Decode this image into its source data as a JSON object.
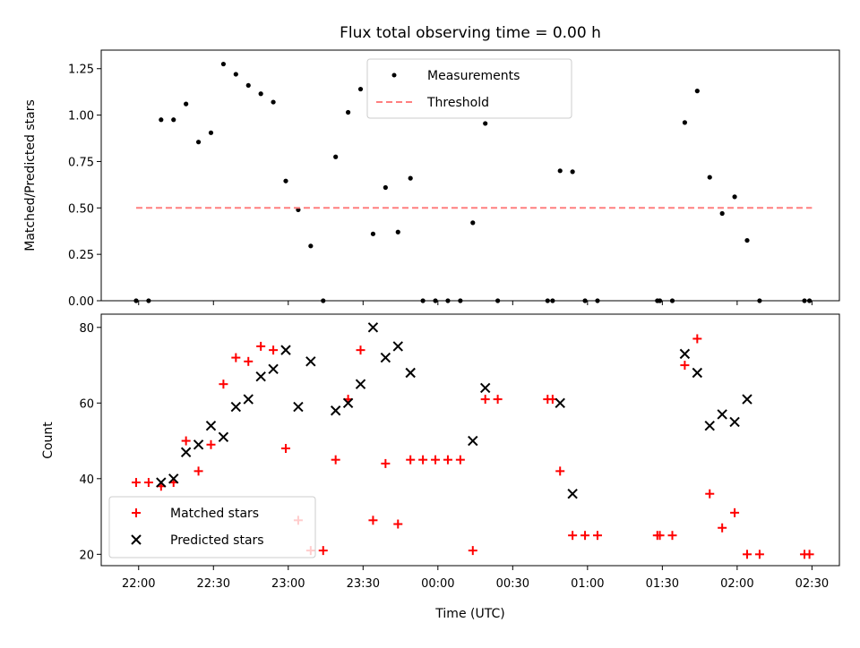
{
  "chart_data": [
    {
      "type": "scatter",
      "title": "Flux total observing time = 0.00 h",
      "xlabel": "",
      "ylabel": "Matched/Predicted stars",
      "ylim": [
        0,
        1.35
      ],
      "yticks": [
        0.0,
        0.25,
        0.5,
        0.75,
        1.0,
        1.25
      ],
      "yticklabels": [
        "0.00",
        "0.25",
        "0.50",
        "0.75",
        "1.00",
        "1.25"
      ],
      "legend": "upper-center",
      "series": [
        {
          "name": "Measurements",
          "marker": "dot",
          "color": "#000000",
          "points": [
            [
              "21:59",
              0
            ],
            [
              "22:04",
              0
            ],
            [
              "22:09",
              0.975
            ],
            [
              "22:14",
              0.975
            ],
            [
              "22:19",
              1.06
            ],
            [
              "22:24",
              0.855
            ],
            [
              "22:29",
              0.905
            ],
            [
              "22:34",
              1.275
            ],
            [
              "22:39",
              1.22
            ],
            [
              "22:44",
              1.16
            ],
            [
              "22:49",
              1.115
            ],
            [
              "22:54",
              1.07
            ],
            [
              "22:59",
              0.645
            ],
            [
              "23:04",
              0.49
            ],
            [
              "23:09",
              0.295
            ],
            [
              "23:14",
              0
            ],
            [
              "23:19",
              0.775
            ],
            [
              "23:24",
              1.015
            ],
            [
              "23:29",
              1.14
            ],
            [
              "23:34",
              0.36
            ],
            [
              "23:39",
              0.61
            ],
            [
              "23:44",
              0.37
            ],
            [
              "23:49",
              0.66
            ],
            [
              "23:54",
              0
            ],
            [
              "23:59",
              0
            ],
            [
              "00:04",
              0
            ],
            [
              "00:09",
              0
            ],
            [
              "00:14",
              0.42
            ],
            [
              "00:19",
              0.955
            ],
            [
              "00:24",
              0
            ],
            [
              "00:44",
              0
            ],
            [
              "00:46",
              0
            ],
            [
              "00:49",
              0.7
            ],
            [
              "00:54",
              0.695
            ],
            [
              "00:59",
              0
            ],
            [
              "01:04",
              0
            ],
            [
              "01:28",
              0
            ],
            [
              "01:29",
              0
            ],
            [
              "01:34",
              0
            ],
            [
              "01:39",
              0.96
            ],
            [
              "01:44",
              1.13
            ],
            [
              "01:49",
              0.665
            ],
            [
              "01:54",
              0.47
            ],
            [
              "01:59",
              0.56
            ],
            [
              "02:04",
              0.325
            ],
            [
              "02:09",
              0
            ],
            [
              "02:27",
              0
            ],
            [
              "02:29",
              0
            ]
          ]
        },
        {
          "name": "Threshold",
          "style": "dashed",
          "color": "#ff7f7f",
          "points": [
            [
              "21:59",
              0.5
            ],
            [
              "02:30",
              0.5
            ]
          ]
        }
      ]
    },
    {
      "type": "scatter",
      "title": "",
      "xlabel": "Time (UTC)",
      "ylabel": "Count",
      "ylim": [
        17,
        83.5
      ],
      "yticks": [
        20,
        40,
        60,
        80
      ],
      "yticklabels": [
        "20",
        "40",
        "60",
        "80"
      ],
      "xrange": [
        "21:45",
        "02:41"
      ],
      "xticks": [
        "22:00",
        "22:30",
        "23:00",
        "23:30",
        "00:00",
        "00:30",
        "01:00",
        "01:30",
        "02:00",
        "02:30"
      ],
      "legend": "lower-left",
      "series": [
        {
          "name": "Matched stars",
          "marker": "plus",
          "color": "#ff0000",
          "points": [
            [
              "21:59",
              39
            ],
            [
              "22:04",
              39
            ],
            [
              "22:09",
              38
            ],
            [
              "22:14",
              39
            ],
            [
              "22:19",
              50
            ],
            [
              "22:24",
              42
            ],
            [
              "22:29",
              49
            ],
            [
              "22:34",
              65
            ],
            [
              "22:39",
              72
            ],
            [
              "22:44",
              71
            ],
            [
              "22:49",
              75
            ],
            [
              "22:54",
              74
            ],
            [
              "22:59",
              48
            ],
            [
              "23:04",
              29
            ],
            [
              "23:09",
              21
            ],
            [
              "23:14",
              21
            ],
            [
              "23:19",
              45
            ],
            [
              "23:24",
              61
            ],
            [
              "23:29",
              74
            ],
            [
              "23:34",
              29
            ],
            [
              "23:39",
              44
            ],
            [
              "23:44",
              28
            ],
            [
              "23:49",
              45
            ],
            [
              "23:54",
              45
            ],
            [
              "23:59",
              45
            ],
            [
              "00:04",
              45
            ],
            [
              "00:09",
              45
            ],
            [
              "00:14",
              21
            ],
            [
              "00:19",
              61
            ],
            [
              "00:24",
              61
            ],
            [
              "00:44",
              61
            ],
            [
              "00:46",
              61
            ],
            [
              "00:49",
              42
            ],
            [
              "00:54",
              25
            ],
            [
              "00:59",
              25
            ],
            [
              "01:04",
              25
            ],
            [
              "01:28",
              25
            ],
            [
              "01:29",
              25
            ],
            [
              "01:34",
              25
            ],
            [
              "01:39",
              70
            ],
            [
              "01:44",
              77
            ],
            [
              "01:49",
              36
            ],
            [
              "01:54",
              27
            ],
            [
              "01:59",
              31
            ],
            [
              "02:04",
              20
            ],
            [
              "02:09",
              20
            ],
            [
              "02:27",
              20
            ],
            [
              "02:29",
              20
            ]
          ]
        },
        {
          "name": "Predicted stars",
          "marker": "x",
          "color": "#000000",
          "points": [
            [
              "22:09",
              39
            ],
            [
              "22:14",
              40
            ],
            [
              "22:19",
              47
            ],
            [
              "22:24",
              49
            ],
            [
              "22:29",
              54
            ],
            [
              "22:34",
              51
            ],
            [
              "22:39",
              59
            ],
            [
              "22:44",
              61
            ],
            [
              "22:49",
              67
            ],
            [
              "22:54",
              69
            ],
            [
              "22:59",
              74
            ],
            [
              "23:04",
              59
            ],
            [
              "23:09",
              71
            ],
            [
              "23:19",
              58
            ],
            [
              "23:24",
              60
            ],
            [
              "23:29",
              65
            ],
            [
              "23:34",
              80
            ],
            [
              "23:39",
              72
            ],
            [
              "23:44",
              75
            ],
            [
              "23:49",
              68
            ],
            [
              "00:14",
              50
            ],
            [
              "00:19",
              64
            ],
            [
              "00:49",
              60
            ],
            [
              "00:54",
              36
            ],
            [
              "01:39",
              73
            ],
            [
              "01:44",
              68
            ],
            [
              "01:49",
              54
            ],
            [
              "01:54",
              57
            ],
            [
              "01:59",
              55
            ],
            [
              "02:04",
              61
            ]
          ]
        }
      ]
    }
  ]
}
